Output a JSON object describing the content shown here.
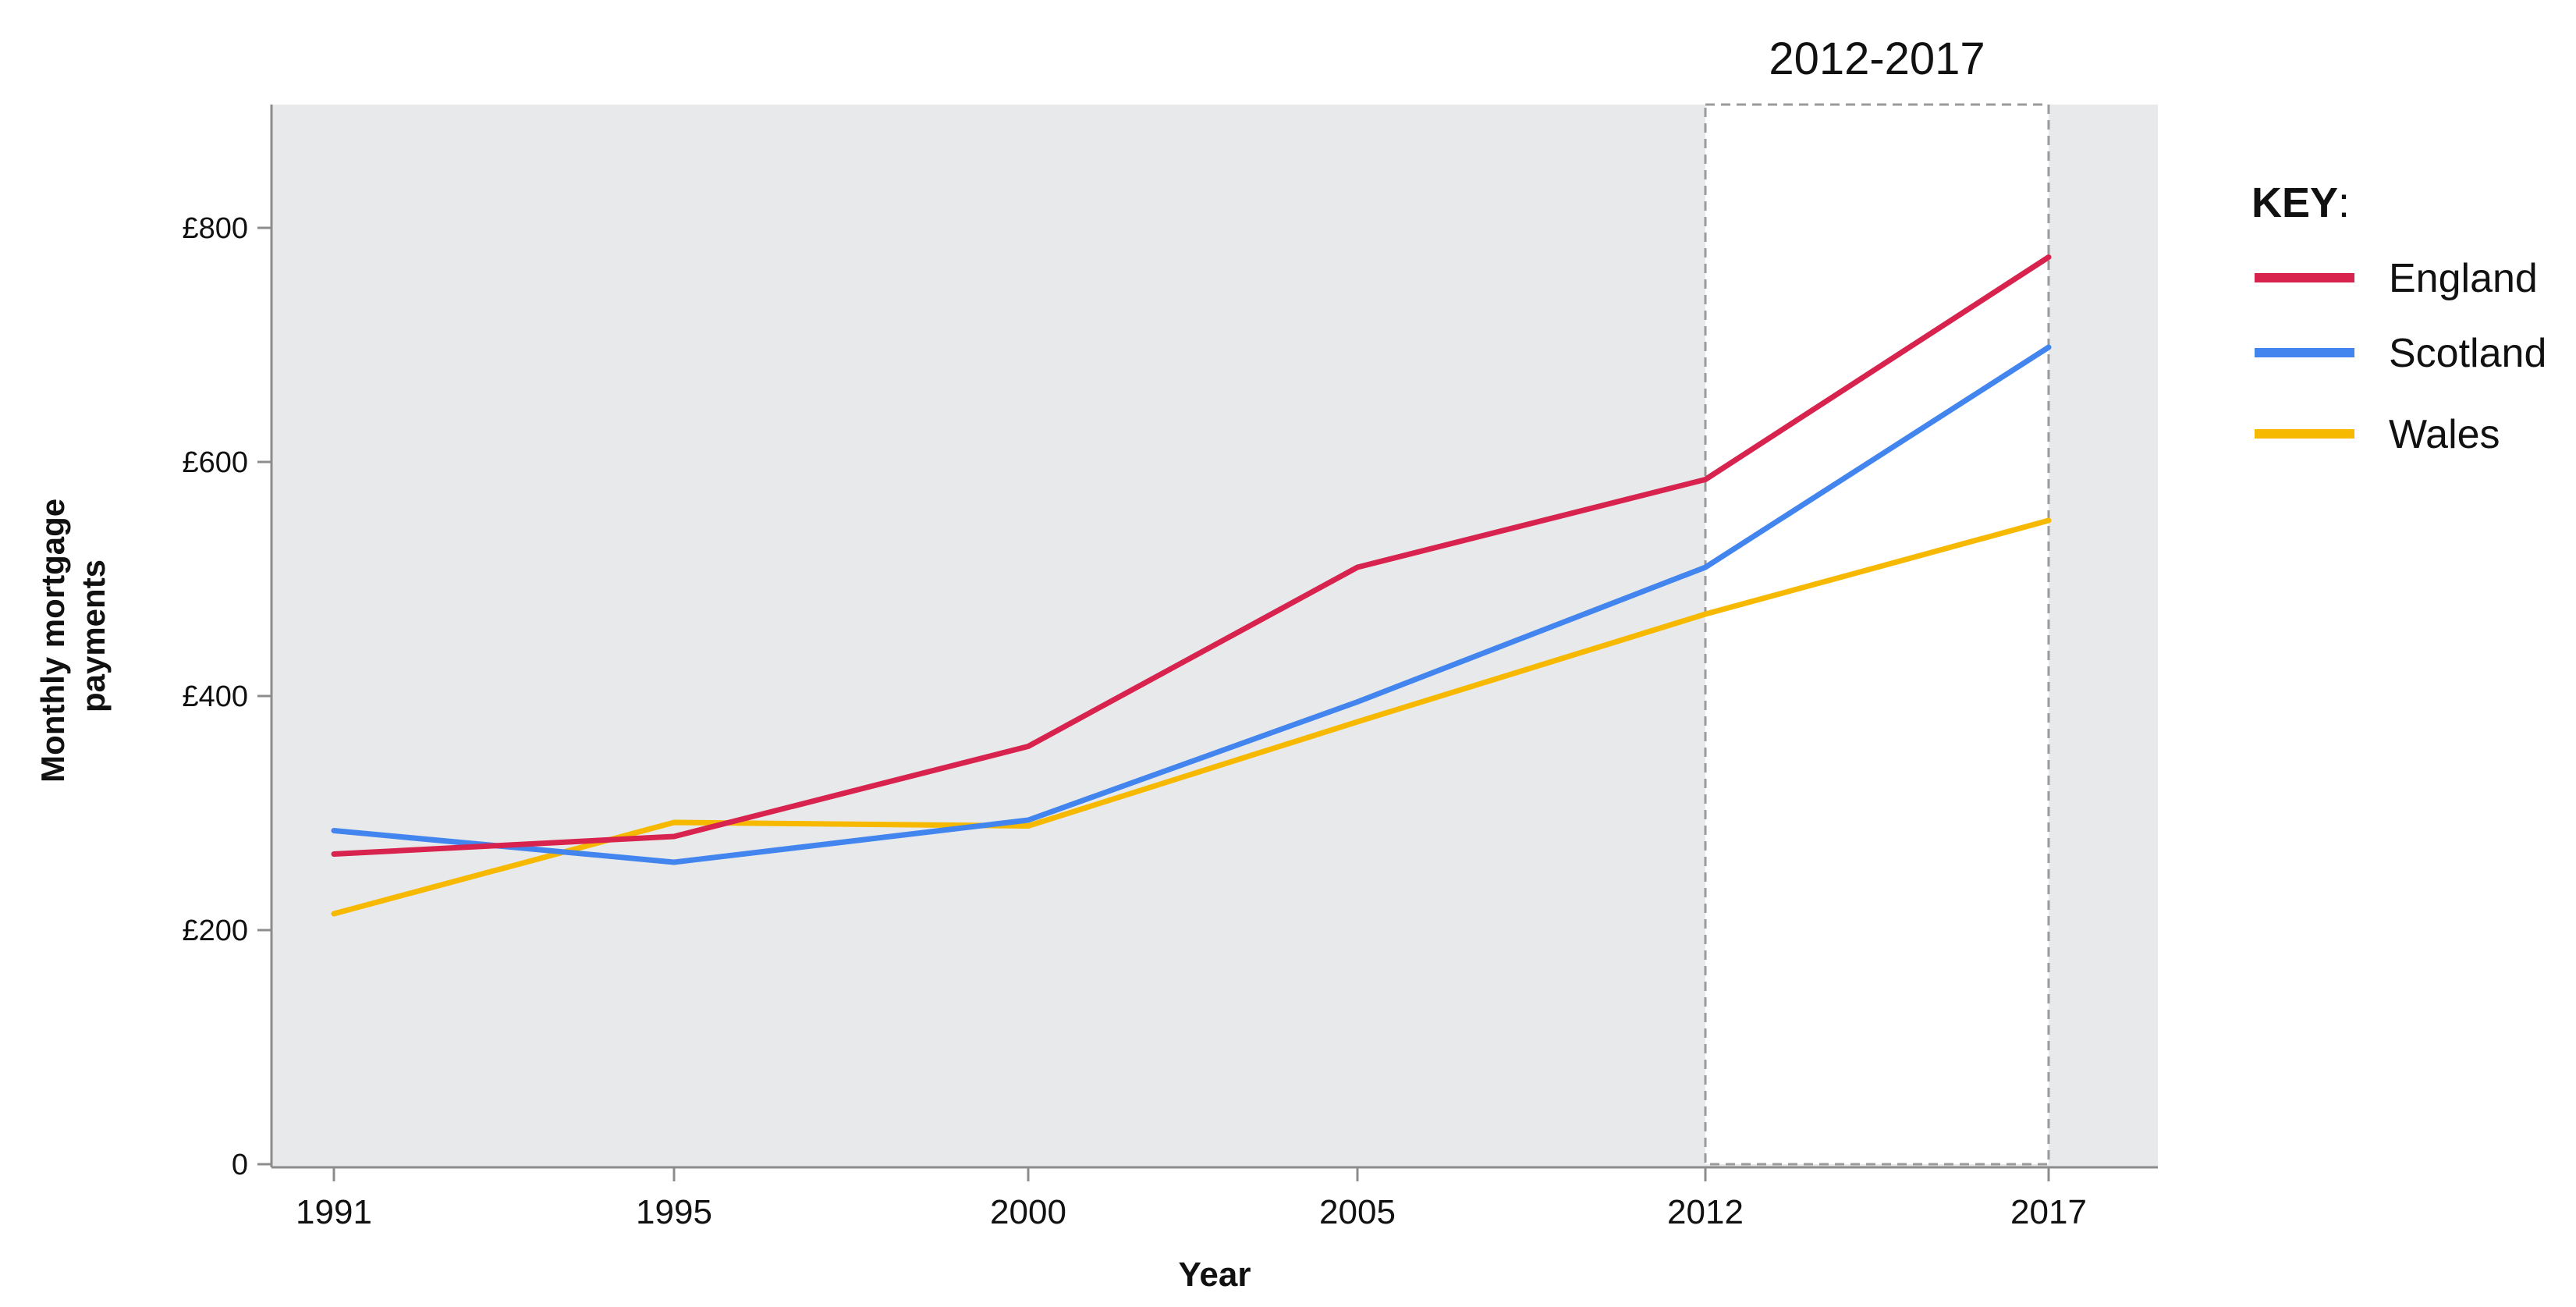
{
  "chart_data": {
    "type": "line",
    "title": "",
    "xlabel": "Year",
    "ylabel": "Monthly mortgage payments",
    "categories": [
      "1991",
      "1995",
      "2000",
      "2005",
      "2012",
      "2017"
    ],
    "x": [
      1991,
      1995,
      2000,
      2005,
      2012,
      2017
    ],
    "y_ticks": [
      "0",
      "£200",
      "£400",
      "£600",
      "£800"
    ],
    "y_tick_values": [
      0,
      200,
      400,
      600,
      800
    ],
    "ylim": [
      0,
      900
    ],
    "grid": false,
    "series": [
      {
        "name": "England",
        "color": "#d7234e",
        "values": [
          265,
          280,
          357,
          510,
          585,
          775
        ]
      },
      {
        "name": "Scotland",
        "color": "#4385ef",
        "values": [
          285,
          258,
          294,
          395,
          510,
          698
        ]
      },
      {
        "name": "Wales",
        "color": "#f6b900",
        "values": [
          214,
          292,
          289,
          378,
          470,
          550
        ]
      }
    ],
    "highlight": {
      "label": "2012-2017",
      "x_start": 2012,
      "x_end": 2017
    },
    "legend": {
      "title": "KEY",
      "title_suffix": ":",
      "position": "right"
    }
  }
}
